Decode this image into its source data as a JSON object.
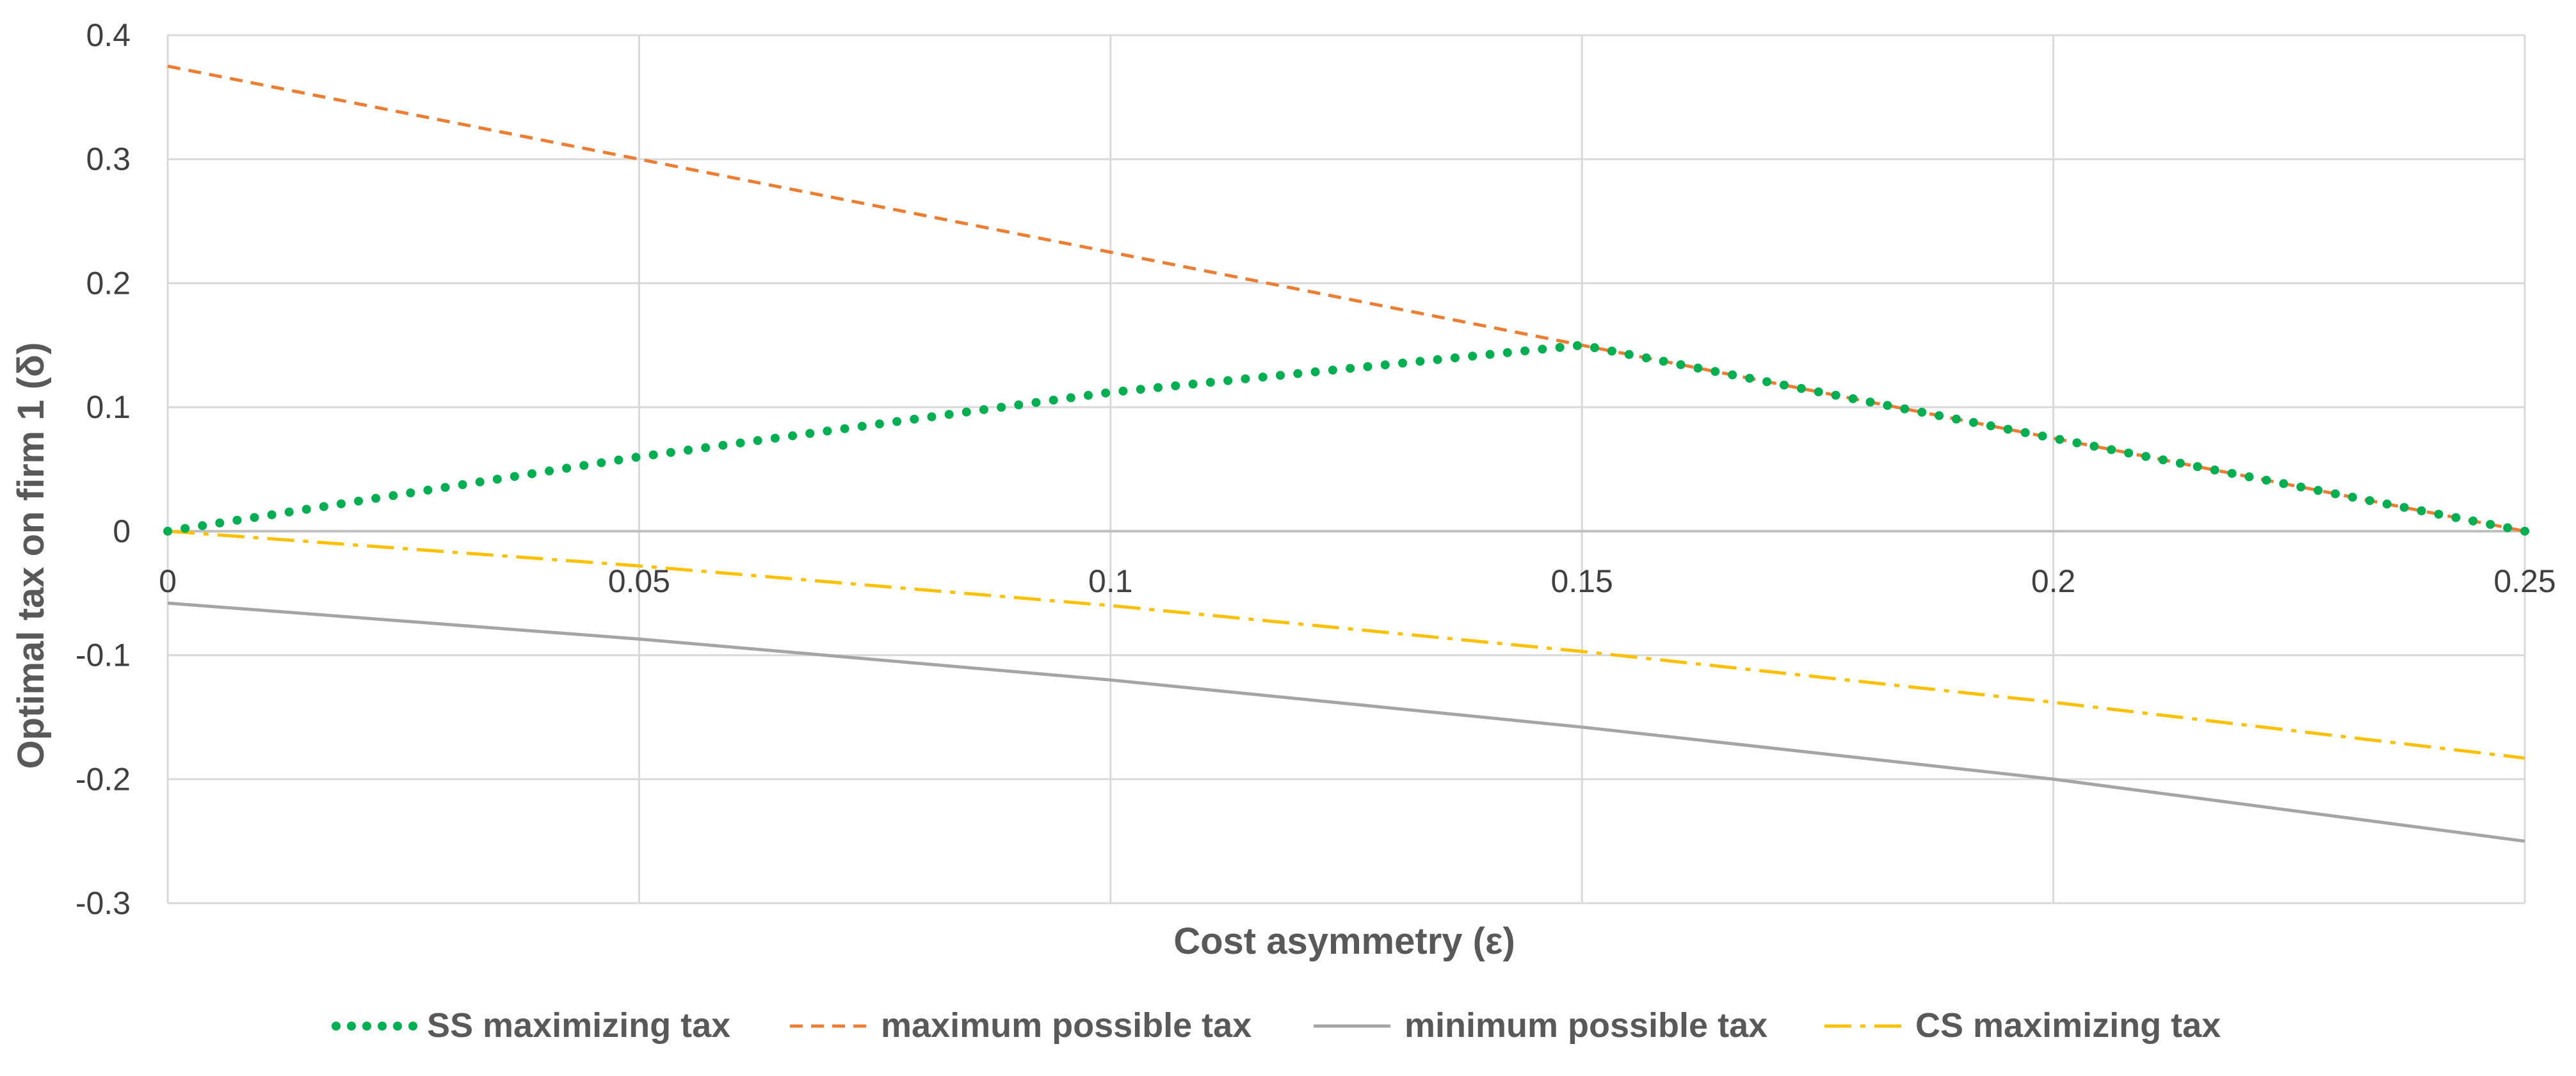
{
  "chart_data": {
    "type": "line",
    "xlabel": "Cost asymmetry (ε)",
    "ylabel": "Optimal tax on firm 1 (δ)",
    "xlim": [
      0,
      0.25
    ],
    "ylim": [
      -0.3,
      0.4
    ],
    "x_ticks": [
      0,
      0.05,
      0.1,
      0.15,
      0.2,
      0.25
    ],
    "x_tick_labels": [
      "0",
      "0.05",
      "0.1",
      "0.15",
      "0.2",
      "0.25"
    ],
    "y_ticks": [
      0.4,
      0.3,
      0.2,
      0.1,
      0,
      -0.1,
      -0.2,
      -0.3
    ],
    "y_tick_labels": [
      "0.4",
      "0.3",
      "0.2",
      "0.1",
      "0",
      "-0.1",
      "-0.2",
      "-0.3"
    ],
    "grid": true,
    "legend_position": "bottom",
    "series": [
      {
        "name": "SS maximizing tax",
        "color": "#00B050",
        "style": "dotted",
        "x": [
          0,
          0.05,
          0.1,
          0.15,
          0.2,
          0.25
        ],
        "y": [
          0,
          0.06,
          0.112,
          0.15,
          0.075,
          0
        ]
      },
      {
        "name": "maximum possible tax",
        "color": "#ED7D31",
        "style": "dashed",
        "x": [
          0,
          0.05,
          0.1,
          0.15,
          0.2,
          0.25
        ],
        "y": [
          0.375,
          0.3,
          0.225,
          0.15,
          0.075,
          0
        ]
      },
      {
        "name": "minimum possible tax",
        "color": "#A5A5A5",
        "style": "solid",
        "x": [
          0,
          0.05,
          0.1,
          0.15,
          0.2,
          0.25
        ],
        "y": [
          -0.058,
          -0.087,
          -0.12,
          -0.158,
          -0.2,
          -0.25
        ]
      },
      {
        "name": "CS maximizing tax",
        "color": "#FFC000",
        "style": "dashdot",
        "x": [
          0,
          0.05,
          0.1,
          0.15,
          0.2,
          0.25
        ],
        "y": [
          0,
          -0.028,
          -0.06,
          -0.097,
          -0.138,
          -0.183
        ]
      }
    ]
  }
}
